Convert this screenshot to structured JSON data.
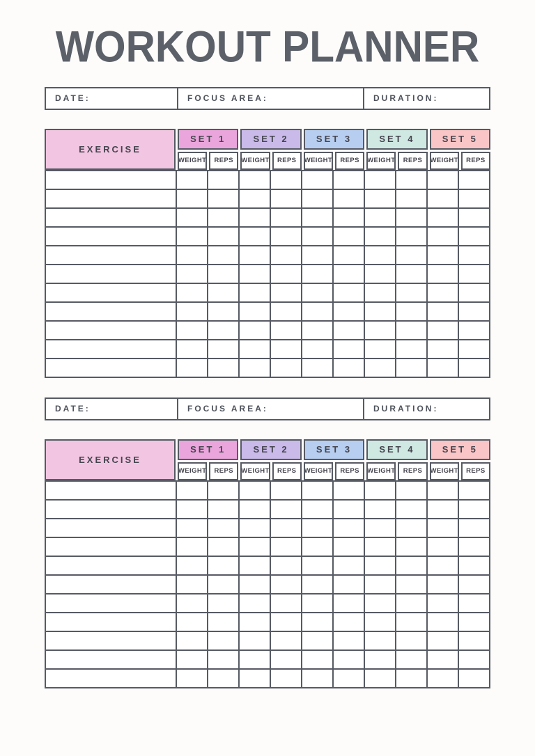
{
  "page": {
    "title": "WORKOUT PLANNER",
    "background_color": "#fdfcfb",
    "title_color": "#5c6169",
    "border_color": "#565a63"
  },
  "info_bar": {
    "date_label": "DATE:",
    "focus_label": "FOCUS AREA:",
    "duration_label": "DURATION:"
  },
  "table": {
    "exercise_label": "EXERCISE",
    "exercise_header_color": "#f2c6e2",
    "sub_headers": [
      "WEIGHT",
      "REPS"
    ],
    "sets": [
      {
        "label": "SET 1",
        "color": "#eaa6dc"
      },
      {
        "label": "SET 2",
        "color": "#c9bae9"
      },
      {
        "label": "SET 3",
        "color": "#b7cef0"
      },
      {
        "label": "SET 4",
        "color": "#cfe8e2"
      },
      {
        "label": "SET 5",
        "color": "#f9c5c6"
      }
    ],
    "body_rows": 11
  },
  "sections": [
    {
      "id": "workout-1"
    },
    {
      "id": "workout-2"
    }
  ]
}
